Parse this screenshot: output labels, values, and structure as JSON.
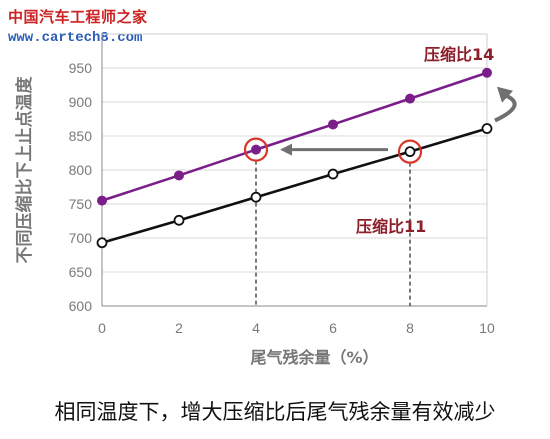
{
  "watermark": {
    "site_name": "中国汽车工程师之家",
    "site_url": "www.cartech8.com"
  },
  "chart_data": {
    "type": "line",
    "ylabel": "不同压缩比下上止点温度",
    "xlabel": "尾气残余量（%）",
    "xlim": [
      0,
      10
    ],
    "ylim": [
      600,
      1000
    ],
    "x_ticks": [
      0,
      2,
      4,
      6,
      8,
      10
    ],
    "y_ticks": [
      600,
      650,
      700,
      750,
      800,
      850,
      900,
      950
    ],
    "grid": "horizontal",
    "series": [
      {
        "name": "压缩比14",
        "color": "#7a1f8a",
        "marker": "filled",
        "x": [
          0,
          2,
          4,
          6,
          8,
          10
        ],
        "values": [
          755,
          792,
          830,
          867,
          905,
          943
        ]
      },
      {
        "name": "压缩比11",
        "color": "#111111",
        "marker": "open",
        "x": [
          0,
          2,
          4,
          6,
          8,
          10
        ],
        "values": [
          693,
          726,
          760,
          794,
          827,
          861
        ]
      }
    ],
    "annotations": {
      "series_label_color": "#8c1f2a",
      "highlight_color": "#d9362b",
      "arrow_color": "#707070",
      "highlight_points": [
        {
          "x": 4,
          "y": 830
        },
        {
          "x": 8,
          "y": 827
        }
      ],
      "caption": "相同温度下，增大压缩比后尾气残余量有效减少"
    }
  }
}
